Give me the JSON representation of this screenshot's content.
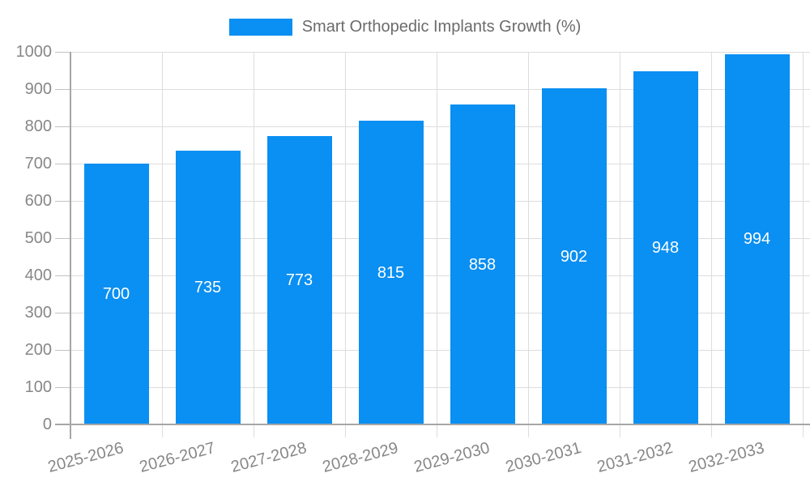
{
  "chart_data": {
    "type": "bar",
    "title": "Smart Orthopedic Implants Growth (%)",
    "xlabel": "",
    "ylabel": "",
    "categories": [
      "2025-2026",
      "2026-2027",
      "2027-2028",
      "2028-2029",
      "2029-2030",
      "2030-2031",
      "2031-2032",
      "2032-2033"
    ],
    "values": [
      700,
      735,
      773,
      815,
      858,
      902,
      948,
      994
    ],
    "series": [
      {
        "name": "Smart Orthopedic Implants Growth (%)",
        "values": [
          700,
          735,
          773,
          815,
          858,
          902,
          948,
          994
        ]
      }
    ],
    "ylim": [
      0,
      1000
    ],
    "yticks": [
      0,
      100,
      200,
      300,
      400,
      500,
      600,
      700,
      800,
      900,
      1000
    ],
    "grid": true,
    "legend_position": "top",
    "x_label_rotation_deg": -15,
    "value_labels": "inside-center",
    "colors": {
      "bar": "#0a8ff2",
      "value_label": "#ffffff",
      "axis_line": "#a6a6a6",
      "gridline": "#dddddd",
      "tick": "#c2c2c2",
      "axis_label": "#878787",
      "legend_text": "#6b6b6b",
      "background": "#ffffff"
    }
  }
}
